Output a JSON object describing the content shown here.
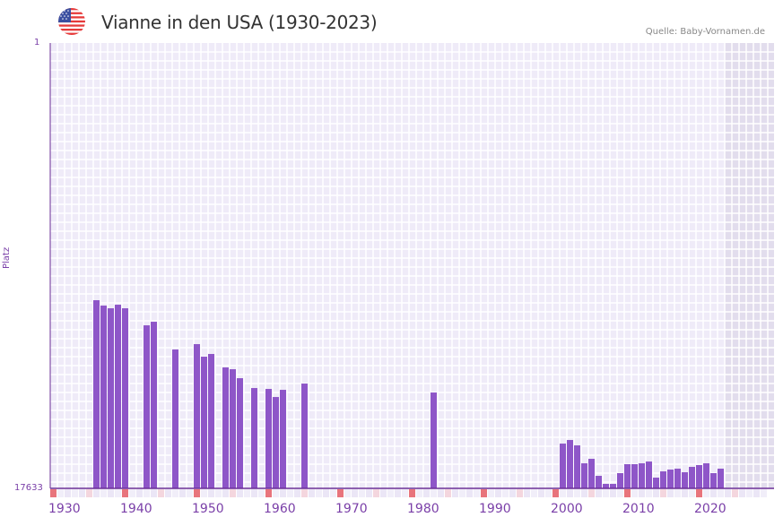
{
  "header": {
    "title": "Vianne in den USA (1930-2023)",
    "source": "Quelle: Baby-Vornamen.de",
    "flag_icon": "us-flag-icon"
  },
  "colors": {
    "bar": "#8e56c8",
    "grid_bg": "#efebf8",
    "grid_line": "#ffffff",
    "future_bg": "#e2dded",
    "axis": "#6a2e96",
    "decade_marker": "#e8747c",
    "half_decade_marker": "#f4d6de",
    "label": "#7a3fa8"
  },
  "chart_data": {
    "type": "bar",
    "title": "Vianne in den USA (1930-2023)",
    "xlabel": "",
    "ylabel": "Platz",
    "y_inverted": true,
    "ylim": [
      1,
      17633
    ],
    "yticks": [
      "1",
      "17633"
    ],
    "xlim": [
      1930,
      2030
    ],
    "xticks": [
      "1930",
      "1940",
      "1950",
      "1960",
      "1970",
      "1980",
      "1990",
      "2000",
      "2010",
      "2020"
    ],
    "grid": true,
    "legend": null,
    "x": [
      1936,
      1937,
      1938,
      1939,
      1940,
      1943,
      1944,
      1947,
      1950,
      1951,
      1952,
      1954,
      1955,
      1956,
      1958,
      1960,
      1961,
      1962,
      1965,
      1983,
      2001,
      2002,
      2003,
      2004,
      2005,
      2006,
      2007,
      2008,
      2009,
      2010,
      2011,
      2012,
      2013,
      2014,
      2015,
      2016,
      2017,
      2018,
      2019,
      2020,
      2021,
      2022,
      2023
    ],
    "values": [
      10184,
      10397,
      10503,
      10362,
      10503,
      11178,
      11036,
      12135,
      11922,
      12419,
      12312,
      12845,
      12916,
      13271,
      13661,
      13696,
      14016,
      13732,
      13484,
      13838,
      15860,
      15718,
      15931,
      16641,
      16463,
      17137,
      17456,
      17456,
      17030,
      16676,
      16676,
      16641,
      16570,
      17208,
      16960,
      16889,
      16853,
      16995,
      16782,
      16711,
      16641,
      17030,
      16853
    ]
  },
  "axis": {
    "y_top_label": "1",
    "y_bottom_label": "17633",
    "y_title": "Platz"
  }
}
